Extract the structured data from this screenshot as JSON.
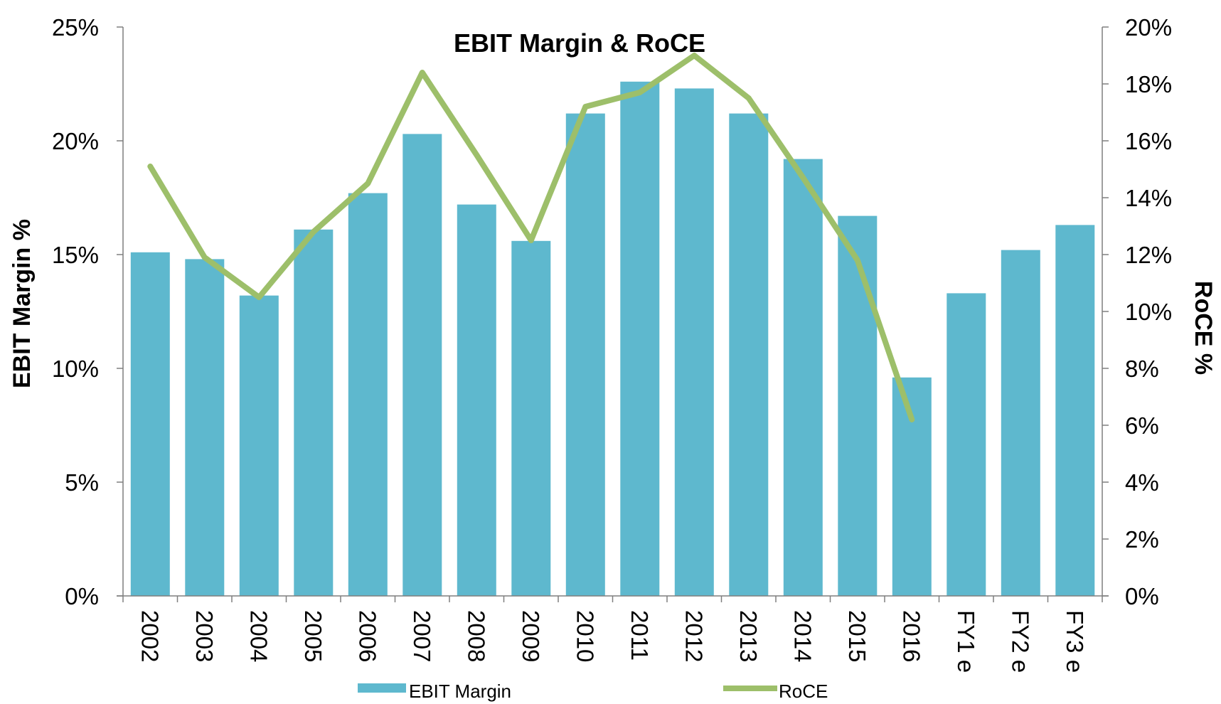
{
  "chart_data": {
    "type": "bar",
    "title": "EBIT Margin & RoCE",
    "categories": [
      "2002",
      "2003",
      "2004",
      "2005",
      "2006",
      "2007",
      "2008",
      "2009",
      "2010",
      "2011",
      "2012",
      "2013",
      "2014",
      "2015",
      "2016",
      "FY1 e",
      "FY2 e",
      "FY3 e"
    ],
    "series": [
      {
        "name": "EBIT Margin",
        "type": "bar",
        "axis": "left",
        "color": "#5EB8CE",
        "values": [
          15.1,
          14.8,
          13.2,
          16.1,
          17.7,
          20.3,
          17.2,
          15.6,
          21.2,
          22.6,
          22.3,
          21.2,
          19.2,
          16.7,
          9.6,
          13.3,
          15.2,
          16.3
        ]
      },
      {
        "name": "RoCE",
        "type": "line",
        "axis": "right",
        "color": "#9DBF6A",
        "values": [
          15.1,
          11.9,
          10.5,
          12.8,
          14.5,
          18.4,
          15.5,
          12.5,
          17.2,
          17.7,
          19.0,
          17.5,
          14.7,
          11.8,
          6.2,
          null,
          null,
          null
        ]
      }
    ],
    "ylabel": "EBIT Margin %",
    "y2label": "RoCE %",
    "ylim": [
      0,
      25
    ],
    "y2lim": [
      0,
      20
    ],
    "yticks": [
      "0%",
      "5%",
      "10%",
      "15%",
      "20%",
      "25%"
    ],
    "y2ticks": [
      "0%",
      "2%",
      "4%",
      "6%",
      "8%",
      "10%",
      "12%",
      "14%",
      "16%",
      "18%",
      "20%"
    ],
    "grid": false,
    "legend_position": "bottom"
  }
}
